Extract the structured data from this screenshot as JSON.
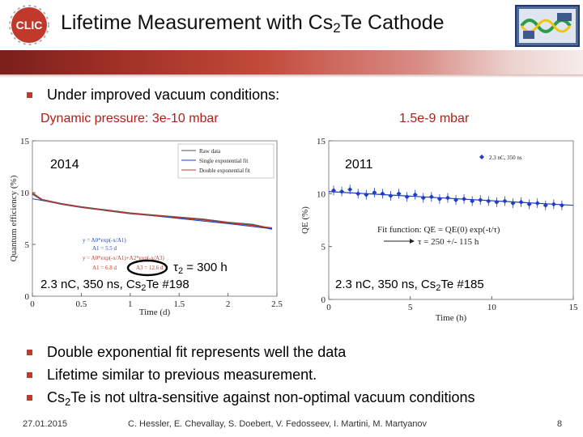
{
  "header": {
    "title_main": "Lifetime Measurement with Cs",
    "title_sub": "2",
    "title_tail": "Te Cathode",
    "left_logo_text": "CLIC"
  },
  "intro": {
    "bullet": "Under improved vacuum conditions:",
    "pressure_left": "Dynamic pressure: 3e-10 mbar",
    "pressure_right": "1.5e-9 mbar"
  },
  "plot_left": {
    "year": "2014",
    "tau_symbol": "τ",
    "tau_sub": "2",
    "tau_text": " = 300 h",
    "caption_main": "2.3 nC, 350 ns, Cs",
    "caption_sub": "2",
    "caption_tail": "Te #198",
    "xlabel": "Time (d)",
    "ylabel": "Quantum efficiency (%)",
    "xticks": [
      "0",
      "0.5",
      "1",
      "1.5",
      "2",
      "2.5"
    ],
    "yticks": [
      "0",
      "5",
      "10",
      "15"
    ],
    "legend": [
      "Raw data",
      "Single exponential fit",
      "Double exponential fit"
    ],
    "fit_lines": [
      "y = A0*exp(-x/A1)",
      "A1 = 5.5 d",
      "y = A0*exp(-x/A1)+A2*exp(-x/A3)",
      "A1 = 6.8 d",
      "A3 = 12.6 d"
    ]
  },
  "plot_right": {
    "year": "2011",
    "caption_main": "2.3 nC, 350 ns, Cs",
    "caption_sub": "2",
    "caption_tail": "Te #185",
    "xlabel": "Time (h)",
    "ylabel": "QE (%)",
    "xticks": [
      "0",
      "5",
      "10",
      "15"
    ],
    "yticks": [
      "0",
      "5",
      "10",
      "15"
    ],
    "legend": "2.3 nC, 350 ns",
    "fit_function": "Fit function: QE = QE(0) exp(-t/τ)",
    "fit_result": "τ = 250 +/- 115 h"
  },
  "chart_data": [
    {
      "type": "line",
      "title": "2014",
      "xlabel": "Time (d)",
      "ylabel": "Quantum efficiency (%)",
      "xlim": [
        0,
        2.5
      ],
      "ylim": [
        0,
        15
      ],
      "series": [
        {
          "name": "Raw data",
          "x": [
            0,
            0.1,
            0.3,
            0.5,
            0.75,
            1.0,
            1.25,
            1.5,
            1.75,
            2.0,
            2.25,
            2.45
          ],
          "y": [
            9.9,
            9.3,
            8.9,
            8.6,
            8.3,
            8.0,
            7.8,
            7.6,
            7.4,
            7.1,
            6.9,
            6.5
          ]
        },
        {
          "name": "Single exponential fit",
          "x": [
            0,
            0.5,
            1.0,
            1.5,
            2.0,
            2.45
          ],
          "y": [
            9.4,
            8.6,
            8.0,
            7.5,
            7.0,
            6.5
          ]
        },
        {
          "name": "Double exponential fit",
          "x": [
            0,
            0.1,
            0.3,
            0.5,
            1.0,
            1.5,
            2.0,
            2.45
          ],
          "y": [
            10.0,
            9.3,
            8.9,
            8.6,
            8.0,
            7.6,
            7.1,
            6.6
          ]
        }
      ]
    },
    {
      "type": "scatter",
      "title": "2011",
      "xlabel": "Time (h)",
      "ylabel": "QE (%)",
      "xlim": [
        0,
        15
      ],
      "ylim": [
        0,
        15
      ],
      "series": [
        {
          "name": "2.3 nC, 350 ns",
          "x": [
            0.3,
            0.8,
            1.3,
            1.8,
            2.3,
            2.8,
            3.3,
            3.8,
            4.3,
            4.8,
            5.3,
            5.8,
            6.3,
            6.8,
            7.3,
            7.8,
            8.3,
            8.8,
            9.3,
            9.8,
            10.3,
            10.8,
            11.3,
            11.8,
            12.3,
            12.8,
            13.3,
            13.8,
            14.3
          ],
          "y": [
            10.3,
            10.2,
            10.4,
            10.0,
            9.9,
            10.1,
            10.0,
            9.8,
            10.0,
            9.7,
            9.9,
            9.6,
            9.7,
            9.5,
            9.6,
            9.4,
            9.5,
            9.3,
            9.4,
            9.3,
            9.2,
            9.3,
            9.1,
            9.2,
            9.0,
            9.1,
            8.9,
            9.0,
            8.9
          ]
        },
        {
          "name": "Fit",
          "x": [
            0,
            15
          ],
          "y": [
            10.2,
            8.9
          ]
        }
      ]
    }
  ],
  "conclusions": {
    "b1": "Double exponential fit represents well the data",
    "b2": "Lifetime similar to previous measurement.",
    "b3_main": "Cs",
    "b3_sub": "2",
    "b3_tail": "Te is not ultra-sensitive against non-optimal vacuum conditions"
  },
  "footer": {
    "date": "27.01.2015",
    "authors": "C. Hessler, E. Chevallay, S. Doebert, V. Fedosseev, I. Martini, M. Martyanov",
    "page": "8"
  },
  "colors": {
    "bullet": "#c0392b",
    "pressure_text": "#b01e17",
    "banner_dark": "#7a1f1b",
    "point_blue": "#1f3fbf"
  }
}
